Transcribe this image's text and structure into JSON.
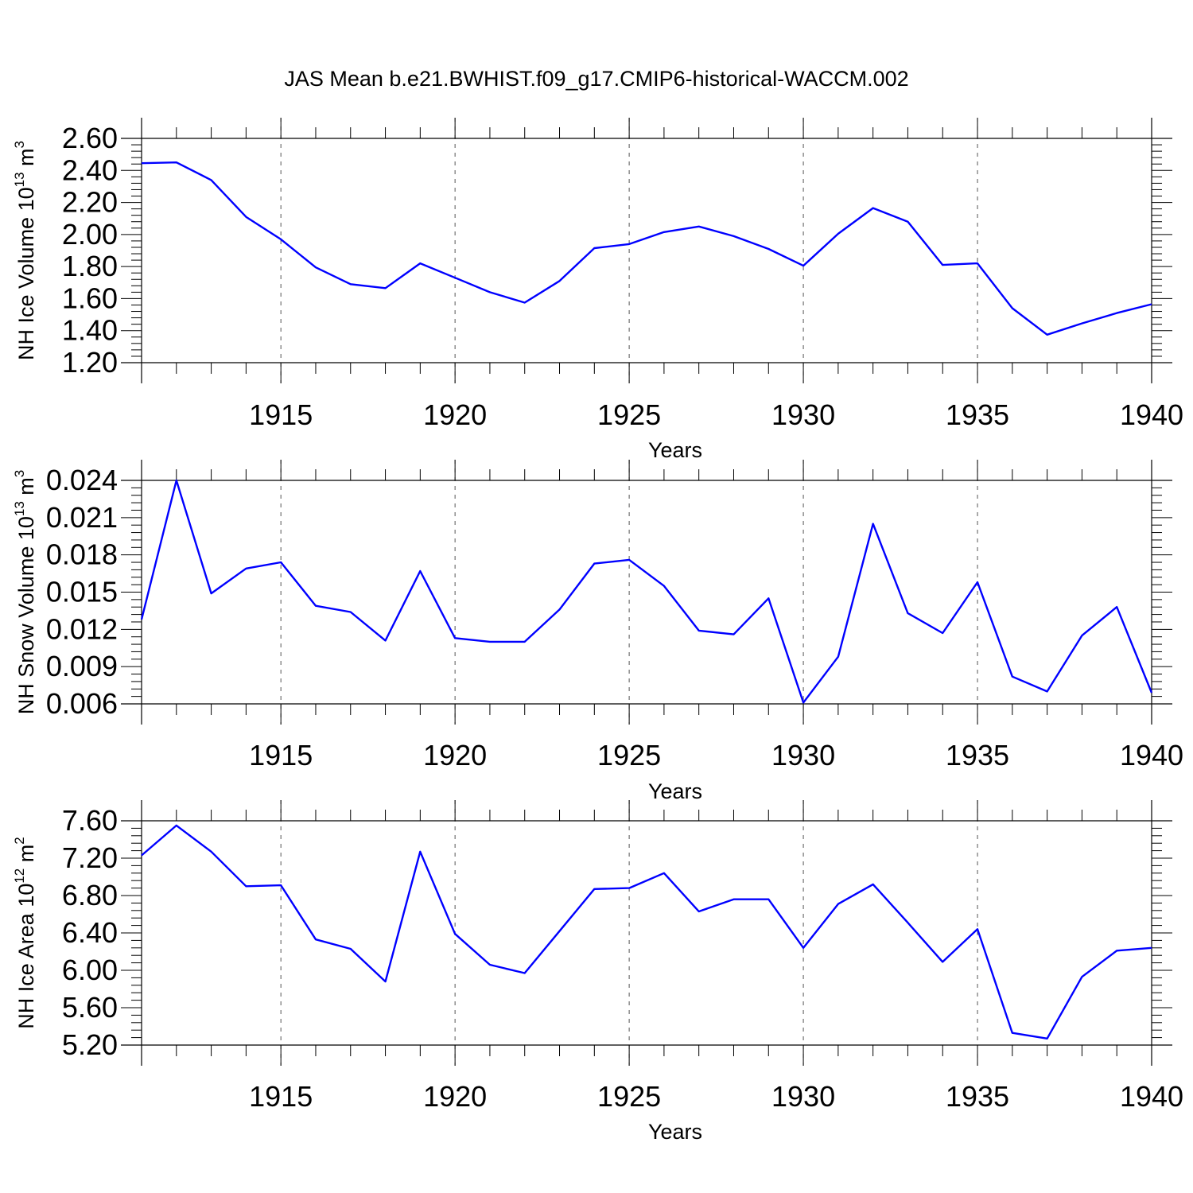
{
  "title": "JAS Mean b.e21.BWHIST.f09_g17.CMIP6-historical-WACCM.002",
  "colors": {
    "series": "#0000ff",
    "axis": "#000000",
    "grid": "#555555"
  },
  "chart_data": [
    {
      "type": "line",
      "ylabel": {
        "main": "NH Ice Volume 10",
        "sup": "13",
        "unit": " m",
        "unit_sup": "3"
      },
      "xlabel": "Years",
      "xlim": [
        1911,
        1940
      ],
      "ylim": [
        1.2,
        2.6
      ],
      "xticks": [
        "1915",
        "1920",
        "1925",
        "1930",
        "1935",
        "1940"
      ],
      "yticks": [
        "1.20",
        "1.40",
        "1.60",
        "1.80",
        "2.00",
        "2.20",
        "2.40",
        "2.60"
      ],
      "grid": "vertical dashed at major x ticks",
      "series": [
        {
          "x": [
            1911,
            1912,
            1913,
            1914,
            1915,
            1916,
            1917,
            1918,
            1919,
            1920,
            1921,
            1922,
            1923,
            1924,
            1925,
            1926,
            1927,
            1928,
            1929,
            1930,
            1931,
            1932,
            1933,
            1934,
            1935,
            1936,
            1937,
            1938,
            1939,
            1940
          ],
          "values": [
            2.445,
            2.45,
            2.34,
            2.11,
            1.97,
            1.795,
            1.69,
            1.665,
            1.82,
            1.73,
            1.64,
            1.575,
            1.71,
            1.915,
            1.94,
            2.015,
            2.05,
            1.99,
            1.91,
            1.805,
            2.005,
            2.165,
            2.08,
            1.81,
            1.82,
            1.54,
            1.375,
            1.445,
            1.51,
            1.565
          ]
        }
      ]
    },
    {
      "type": "line",
      "ylabel": {
        "main": "NH Snow Volume 10",
        "sup": "13",
        "unit": " m",
        "unit_sup": "3"
      },
      "xlabel": "Years",
      "xlim": [
        1911,
        1940
      ],
      "ylim": [
        0.006,
        0.024
      ],
      "xticks": [
        "1915",
        "1920",
        "1925",
        "1930",
        "1935",
        "1940"
      ],
      "yticks": [
        "0.006",
        "0.009",
        "0.012",
        "0.015",
        "0.018",
        "0.021",
        "0.024"
      ],
      "grid": "vertical dashed at major x ticks",
      "series": [
        {
          "x": [
            1911,
            1912,
            1913,
            1914,
            1915,
            1916,
            1917,
            1918,
            1919,
            1920,
            1921,
            1922,
            1923,
            1924,
            1925,
            1926,
            1927,
            1928,
            1929,
            1930,
            1931,
            1932,
            1933,
            1934,
            1935,
            1936,
            1937,
            1938,
            1939,
            1940
          ],
          "values": [
            0.0128,
            0.024,
            0.0149,
            0.0169,
            0.0174,
            0.0139,
            0.0134,
            0.0111,
            0.0167,
            0.0113,
            0.011,
            0.011,
            0.0136,
            0.0173,
            0.0176,
            0.0155,
            0.0119,
            0.0116,
            0.0145,
            0.0061,
            0.0098,
            0.0205,
            0.0133,
            0.0117,
            0.0158,
            0.0082,
            0.007,
            0.0115,
            0.0138,
            0.0069
          ]
        }
      ]
    },
    {
      "type": "line",
      "ylabel": {
        "main": "NH Ice Area 10",
        "sup": "12",
        "unit": " m",
        "unit_sup": "2"
      },
      "xlabel": "Years",
      "xlim": [
        1911,
        1940
      ],
      "ylim": [
        5.2,
        7.6
      ],
      "xticks": [
        "1915",
        "1920",
        "1925",
        "1930",
        "1935",
        "1940"
      ],
      "yticks": [
        "5.20",
        "5.60",
        "6.00",
        "6.40",
        "6.80",
        "7.20",
        "7.60"
      ],
      "grid": "vertical dashed at major x ticks",
      "series": [
        {
          "x": [
            1911,
            1912,
            1913,
            1914,
            1915,
            1916,
            1917,
            1918,
            1919,
            1920,
            1921,
            1922,
            1923,
            1924,
            1925,
            1926,
            1927,
            1928,
            1929,
            1930,
            1931,
            1932,
            1933,
            1934,
            1935,
            1936,
            1937,
            1938,
            1939,
            1940
          ],
          "values": [
            7.23,
            7.55,
            7.27,
            6.9,
            6.91,
            6.33,
            6.23,
            5.88,
            7.27,
            6.39,
            6.06,
            5.97,
            6.42,
            6.87,
            6.88,
            7.04,
            6.63,
            6.76,
            6.76,
            6.24,
            6.71,
            6.92,
            6.51,
            6.09,
            6.44,
            5.33,
            5.27,
            5.93,
            6.21,
            6.24
          ]
        }
      ]
    }
  ]
}
